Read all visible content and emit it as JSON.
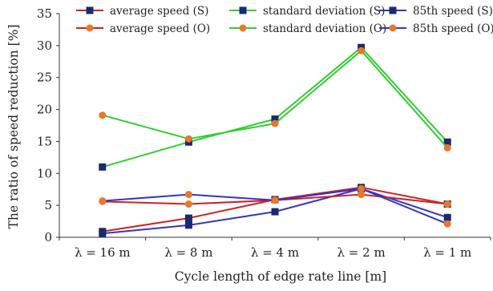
{
  "chart_data": {
    "type": "line",
    "xlabel": "Cycle length of edge rate line [m]",
    "ylabel": "The ratio of speed reduction [%]",
    "ylim": [
      0,
      35
    ],
    "yticks": [
      "0",
      "5",
      "10",
      "15",
      "20",
      "25",
      "30",
      "35"
    ],
    "categories": [
      "λ = 16 m",
      "λ = 8 m",
      "λ = 4 m",
      "λ = 2 m",
      "λ = 1 m"
    ],
    "grid": false,
    "legend_position": "top",
    "series": [
      {
        "name": "average speed (S)",
        "color": "#cc2222",
        "marker": "square",
        "values": [
          0.9,
          3.0,
          5.9,
          7.8,
          5.2
        ]
      },
      {
        "name": "standard deviation (S)",
        "color": "#33cc33",
        "marker": "square",
        "values": [
          11.0,
          14.9,
          18.5,
          29.7,
          14.9
        ]
      },
      {
        "name": "85th speed (S)",
        "color": "#3333cc",
        "marker": "square",
        "values": [
          0.6,
          1.9,
          4.0,
          7.6,
          3.1
        ]
      },
      {
        "name": "average speed (O)",
        "color": "#cc2222",
        "marker": "circle",
        "values": [
          5.6,
          5.2,
          5.8,
          6.7,
          5.2
        ]
      },
      {
        "name": "standard deviation (O)",
        "color": "#33cc33",
        "marker": "circle",
        "values": [
          19.1,
          15.4,
          17.8,
          29.2,
          14.0
        ]
      },
      {
        "name": "85th speed (O)",
        "color": "#3333cc",
        "marker": "circle",
        "values": [
          5.7,
          6.7,
          5.8,
          7.6,
          2.1
        ]
      }
    ],
    "marker_colors": {
      "square": "#1a2a6c",
      "circle": "#e8782a"
    }
  }
}
